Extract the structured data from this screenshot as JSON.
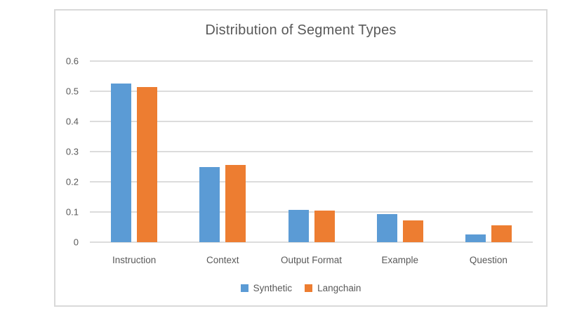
{
  "window": {
    "background": "#ffffff",
    "chart_border_color": "#d9d9d9"
  },
  "chart_data": {
    "type": "bar",
    "title": "Distribution of Segment Types",
    "categories": [
      "Instruction",
      "Context",
      "Output Format",
      "Example",
      "Question"
    ],
    "series": [
      {
        "name": "Synthetic",
        "color": "#5b9bd5",
        "values": [
          0.525,
          0.25,
          0.107,
          0.093,
          0.025
        ]
      },
      {
        "name": "Langchain",
        "color": "#ed7d31",
        "values": [
          0.515,
          0.255,
          0.104,
          0.071,
          0.055
        ]
      }
    ],
    "xlabel": "",
    "ylabel": "",
    "ylim": [
      0,
      0.6
    ],
    "yticks": [
      "0",
      "0.1",
      "0.2",
      "0.3",
      "0.4",
      "0.5",
      "0.6"
    ],
    "grid": true,
    "gridline_color": "#dcdcdc",
    "text_color": "#595959",
    "legend_position": "bottom"
  }
}
